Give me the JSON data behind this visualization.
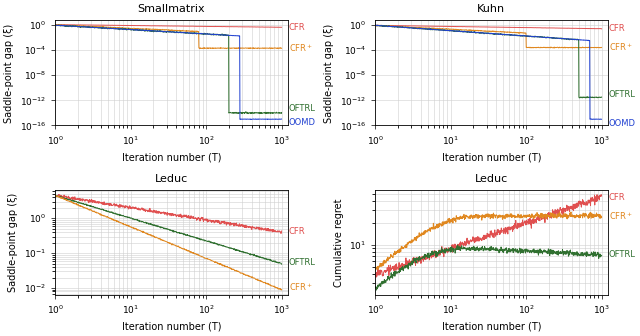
{
  "titles": [
    "Smallmatrix",
    "Kuhn",
    "Leduc",
    "Leduc"
  ],
  "ylabels": [
    "Saddle-point gap (ξ)",
    "Saddle-point gap (ξ)",
    "Saddle-point gap (ξ)",
    "Cumulative regret"
  ],
  "xlabel": "Iteration number (Τ)",
  "colors": {
    "CFR": "#e05050",
    "CFR+": "#e08820",
    "OFTRL": "#307030",
    "OOMD": "#2040d0"
  },
  "figsize": [
    6.4,
    3.36
  ],
  "dpi": 100,
  "lw": 0.7,
  "legend_fontsize": 6.0,
  "title_fontsize": 8,
  "axis_fontsize": 7
}
